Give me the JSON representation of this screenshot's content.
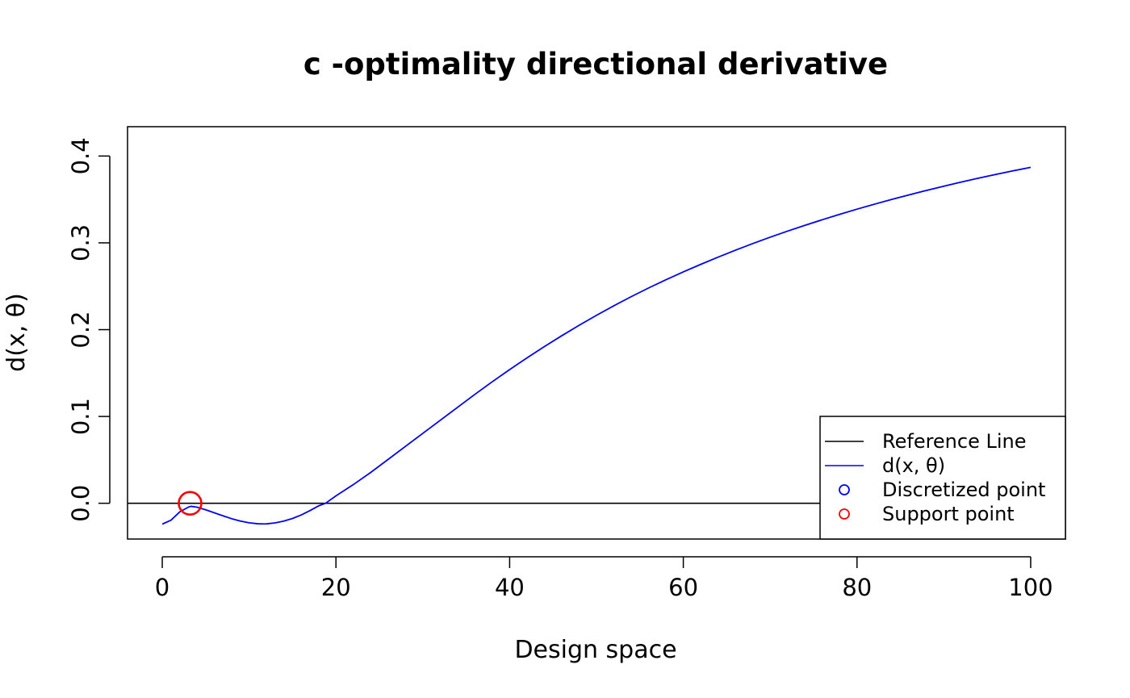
{
  "chart_data": {
    "type": "line",
    "title": "c -optimality directional derivative",
    "xlabel": "Design space",
    "ylabel": "d(x, θ)",
    "xlim": [
      -4,
      104
    ],
    "ylim": [
      -0.0412,
      0.4338
    ],
    "x_ticks": [
      0,
      20,
      40,
      60,
      80,
      100
    ],
    "x_tick_labels": [
      "0",
      "20",
      "40",
      "60",
      "80",
      "100"
    ],
    "y_ticks": [
      0.0,
      0.1,
      0.2,
      0.3,
      0.4
    ],
    "y_tick_labels": [
      "0.0",
      "0.1",
      "0.2",
      "0.3",
      "0.4"
    ],
    "grid": false,
    "legend_position": "bottom-right",
    "series": [
      {
        "name": "Reference Line",
        "kind": "hline",
        "y": 0,
        "color": "#000000"
      },
      {
        "name": "d(x, θ)",
        "kind": "line",
        "color": "#0000ff",
        "x": [
          0,
          1,
          2,
          3,
          3.3,
          4,
          5,
          6,
          7,
          8,
          9,
          10,
          11,
          11.6,
          12,
          13,
          14,
          15,
          16,
          17,
          18,
          18.8,
          20,
          22,
          24,
          26,
          28,
          30,
          32,
          34,
          36,
          38,
          40,
          42,
          44,
          46,
          48,
          50,
          52,
          54,
          56,
          58,
          60,
          62,
          64,
          66,
          68,
          70,
          72,
          74,
          76,
          78,
          80,
          82,
          84,
          86,
          88,
          90,
          92,
          94,
          96,
          98,
          100
        ],
        "y": [
          -0.024,
          -0.0195,
          -0.01,
          -0.0045,
          -0.0035,
          -0.0045,
          -0.0075,
          -0.011,
          -0.0145,
          -0.0178,
          -0.0205,
          -0.0225,
          -0.0236,
          -0.0238,
          -0.0237,
          -0.0226,
          -0.0205,
          -0.0175,
          -0.0135,
          -0.0085,
          -0.003,
          0.0,
          0.0085,
          0.0215,
          0.0355,
          0.0505,
          0.0655,
          0.0805,
          0.0955,
          0.1105,
          0.1255,
          0.14,
          0.154,
          0.1675,
          0.1805,
          0.193,
          0.205,
          0.2165,
          0.2275,
          0.238,
          0.248,
          0.2575,
          0.2665,
          0.2752,
          0.2835,
          0.2915,
          0.2992,
          0.3065,
          0.3135,
          0.3202,
          0.3266,
          0.3328,
          0.3388,
          0.3445,
          0.35,
          0.3553,
          0.3604,
          0.3653,
          0.37,
          0.3745,
          0.3788,
          0.383,
          0.387
        ]
      },
      {
        "name": "Discretized point",
        "kind": "points",
        "color": "#0000ff",
        "x": [],
        "y": []
      },
      {
        "name": "Support point",
        "kind": "points",
        "color": "#ff0000",
        "x": [
          3.2,
          100
        ],
        "y": [
          0,
          0
        ]
      }
    ],
    "legend": [
      {
        "label": "Reference Line",
        "symbol": "line",
        "color": "#000000"
      },
      {
        "label": "d(x, θ)",
        "symbol": "line",
        "color": "#0000ff"
      },
      {
        "label": "Discretized point",
        "symbol": "circle",
        "color": "#0000ff"
      },
      {
        "label": "Support point",
        "symbol": "circle",
        "color": "#ff0000"
      }
    ]
  }
}
